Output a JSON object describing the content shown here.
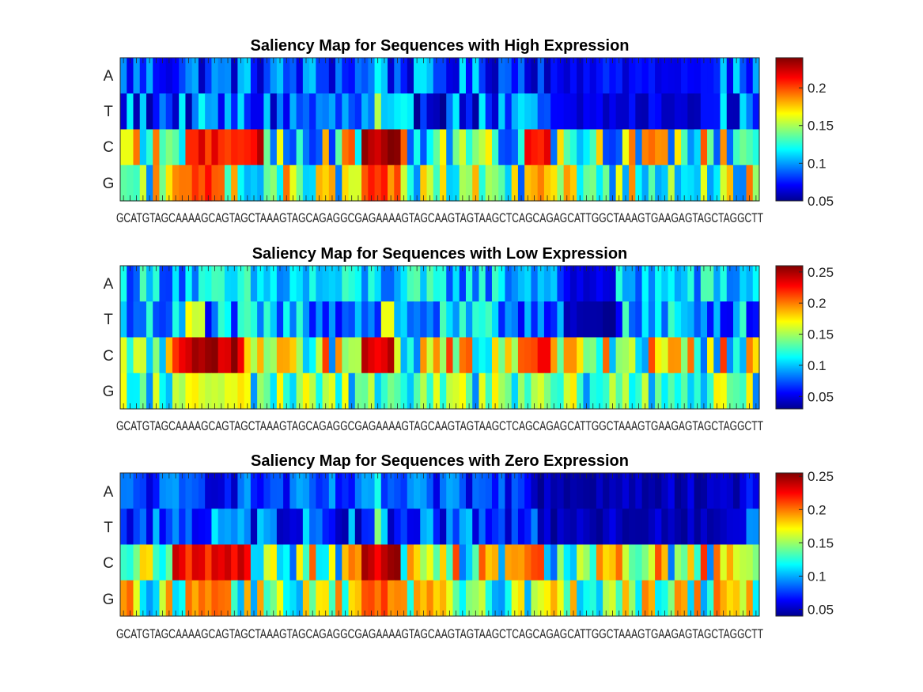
{
  "chart_data": [
    {
      "type": "heatmap",
      "title": "Saliency Map for Sequences with High Expression",
      "rows": [
        "A",
        "T",
        "C",
        "G"
      ],
      "sequence": "GCATGTAGCAAAAGCAGTAGCTAAAGTAGCAGAGGCGAGAAAAGTAGCAAGTAGTAAGCTCAGCAGAGCATTGGCTAAAGTGAAGAGTAGCTAGGCTT",
      "xtick_text": "GCATGTAGCAAAAGCAGTAGCTAAAGTAGCAGAGGCGAGAAAAGTAGCAAGTAGTAAGCTCAGCAGAGCATTGGCTAAAGTGAAGAGTAGCTAGGCTT",
      "clim": [
        0.05,
        0.24
      ],
      "colorbar_ticks": [
        0.05,
        0.1,
        0.15,
        0.2
      ],
      "colorbar_labels": [
        "0.05",
        "0.1",
        "0.15",
        "0.2"
      ],
      "row_base": [
        0.085,
        0.085,
        0.14,
        0.14
      ],
      "row_spread": [
        0.03,
        0.035,
        0.06,
        0.055
      ],
      "peaks": [
        {
          "row": "C",
          "from": 10,
          "to": 21,
          "value": 0.215
        },
        {
          "row": "C",
          "from": 37,
          "to": 42,
          "value": 0.235
        },
        {
          "row": "C",
          "from": 62,
          "to": 65,
          "value": 0.22
        },
        {
          "row": "G",
          "from": 11,
          "to": 15,
          "value": 0.205
        },
        {
          "row": "G",
          "from": 37,
          "to": 42,
          "value": 0.195
        },
        {
          "row": "G",
          "from": 62,
          "to": 65,
          "value": 0.19
        },
        {
          "row": "G",
          "from": 98,
          "to": 99,
          "value": 0.2
        },
        {
          "row": "A",
          "from": 39,
          "to": 39,
          "value": 0.13
        },
        {
          "row": "T",
          "from": 39,
          "to": 39,
          "value": 0.14
        }
      ],
      "low_regions": [
        {
          "row": "A",
          "from": 66,
          "to": 90,
          "value": 0.07
        },
        {
          "row": "T",
          "from": 66,
          "to": 90,
          "value": 0.065
        }
      ]
    },
    {
      "type": "heatmap",
      "title": "Saliency Map for Sequences with Low Expression",
      "rows": [
        "A",
        "T",
        "C",
        "G"
      ],
      "sequence": "GCATGTAGCAAAAGCAGTAGCTAAAGTAGCAGAGGCGAGAAAAGTAGCAAGTAGTAAGCTCAGCAGAGCATTGGCTAAAGTGAAGAGTAGCTAGGCTT",
      "xtick_text": "GCATGTAGCAAAAGCAGTAGCTAAAGTAGCAGAGGCGAGAAAAGTAGCAAGTAGTAAGCTCAGCAGAGCATTGGCTAAAGTGAAGAGTAGCTAGGCTT",
      "clim": [
        0.03,
        0.26
      ],
      "colorbar_ticks": [
        0.05,
        0.1,
        0.15,
        0.2,
        0.25
      ],
      "colorbar_labels": [
        "0.05",
        "0.1",
        "0.15",
        "0.2",
        "0.25"
      ],
      "row_base": [
        0.1,
        0.09,
        0.15,
        0.13
      ],
      "row_spread": [
        0.035,
        0.04,
        0.07,
        0.045
      ],
      "peaks": [
        {
          "row": "C",
          "from": 9,
          "to": 18,
          "value": 0.245
        },
        {
          "row": "C",
          "from": 37,
          "to": 41,
          "value": 0.235
        },
        {
          "row": "C",
          "from": 61,
          "to": 65,
          "value": 0.22
        },
        {
          "row": "C",
          "from": 48,
          "to": 48,
          "value": 0.21
        },
        {
          "row": "G",
          "from": 10,
          "to": 18,
          "value": 0.17
        },
        {
          "row": "T",
          "from": 10,
          "to": 12,
          "value": 0.16
        },
        {
          "row": "T",
          "from": 40,
          "to": 41,
          "value": 0.16
        }
      ],
      "low_regions": [
        {
          "row": "A",
          "from": 68,
          "to": 75,
          "value": 0.045
        },
        {
          "row": "T",
          "from": 68,
          "to": 75,
          "value": 0.035
        }
      ]
    },
    {
      "type": "heatmap",
      "title": "Saliency Map for Sequences with Zero Expression",
      "rows": [
        "A",
        "T",
        "C",
        "G"
      ],
      "sequence": "GCATGTAGCAAAAGCAGTAGCTAAAGTAGCAGAGGCGAGAAAAGTAGCAAGTAGTAAGCTCAGCAGAGCATTGGCTAAAGTGAAGAGTAGCTAGGCTT",
      "xtick_text": "GCATGTAGCAAAAGCAGTAGCTAAAGTAGCAGAGGCGAGAAAAGTAGCAAGTAGTAAGCTCAGCAGAGCATTGGCTAAAGTGAAGAGTAGCTAGGCTT",
      "clim": [
        0.04,
        0.255
      ],
      "colorbar_ticks": [
        0.05,
        0.1,
        0.15,
        0.2,
        0.25
      ],
      "colorbar_labels": [
        "0.05",
        "0.1",
        "0.15",
        "0.2",
        "0.25"
      ],
      "row_base": [
        0.075,
        0.08,
        0.15,
        0.15
      ],
      "row_spread": [
        0.025,
        0.035,
        0.065,
        0.055
      ],
      "peaks": [
        {
          "row": "C",
          "from": 8,
          "to": 19,
          "value": 0.225
        },
        {
          "row": "C",
          "from": 37,
          "to": 42,
          "value": 0.24
        },
        {
          "row": "C",
          "from": 61,
          "to": 64,
          "value": 0.2
        },
        {
          "row": "G",
          "from": 10,
          "to": 16,
          "value": 0.2
        },
        {
          "row": "G",
          "from": 37,
          "to": 42,
          "value": 0.2
        },
        {
          "row": "G",
          "from": 98,
          "to": 99,
          "value": 0.22
        },
        {
          "row": "A",
          "from": 39,
          "to": 39,
          "value": 0.13
        },
        {
          "row": "T",
          "from": 39,
          "to": 39,
          "value": 0.15
        }
      ],
      "low_regions": [
        {
          "row": "A",
          "from": 64,
          "to": 95,
          "value": 0.05
        },
        {
          "row": "T",
          "from": 64,
          "to": 95,
          "value": 0.05
        }
      ]
    }
  ],
  "colormap": [
    "#00008f",
    "#0000ff",
    "#00ffff",
    "#ffff00",
    "#ff0000",
    "#800000"
  ]
}
